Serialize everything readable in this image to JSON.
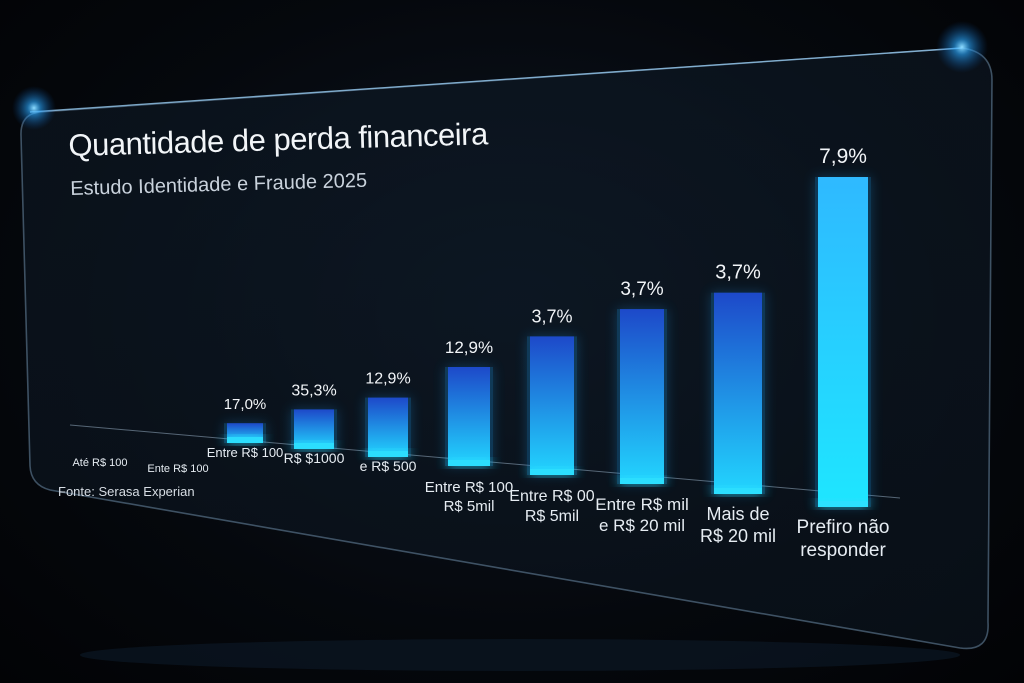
{
  "header": {
    "title": "Quantidade de perda financeira",
    "subtitle": "Estudo Identidade e Fraude 2025"
  },
  "footer": {
    "source": "Fonte: Serasa Experian"
  },
  "colors": {
    "bar_top": "#1d49c9",
    "bar_bottom": "#22d6ff",
    "bar_highlight": "#2fe0ff",
    "glow": "#1aa8ff"
  },
  "chart_data": {
    "type": "bar",
    "title": "Quantidade de perda financeira",
    "subtitle": "Estudo Identidade e Fraude 2025",
    "categories": [
      [
        "Até R$ 100"
      ],
      [
        "Ente R$ 100"
      ],
      [
        "Entre R$ 100"
      ],
      [
        "R$ $1000"
      ],
      [
        "e R$ 500"
      ],
      [
        "Entre R$ 100",
        "R$ 5mil"
      ],
      [
        "Entre R$ 00",
        "R$ 5mil"
      ],
      [
        "Entre R$ mil",
        "e R$ 20 mil"
      ],
      [
        "Mais de",
        "R$ 20 mil"
      ],
      [
        "Prefiro não",
        "responder"
      ]
    ],
    "values": [
      0,
      0,
      17.0,
      35.3,
      12.9,
      12.9,
      3.7,
      3.7,
      3.7,
      7.9
    ],
    "data_labels": [
      "",
      "",
      "17,0%",
      "35,3%",
      "12,9%",
      "12,9%",
      "3,7%",
      "3,7%",
      "3,7%",
      "7,9%"
    ],
    "visual_heights_relative": [
      0,
      0,
      0.06,
      0.12,
      0.18,
      0.3,
      0.42,
      0.53,
      0.61,
      1.0
    ],
    "legend": "none",
    "grid": false
  }
}
